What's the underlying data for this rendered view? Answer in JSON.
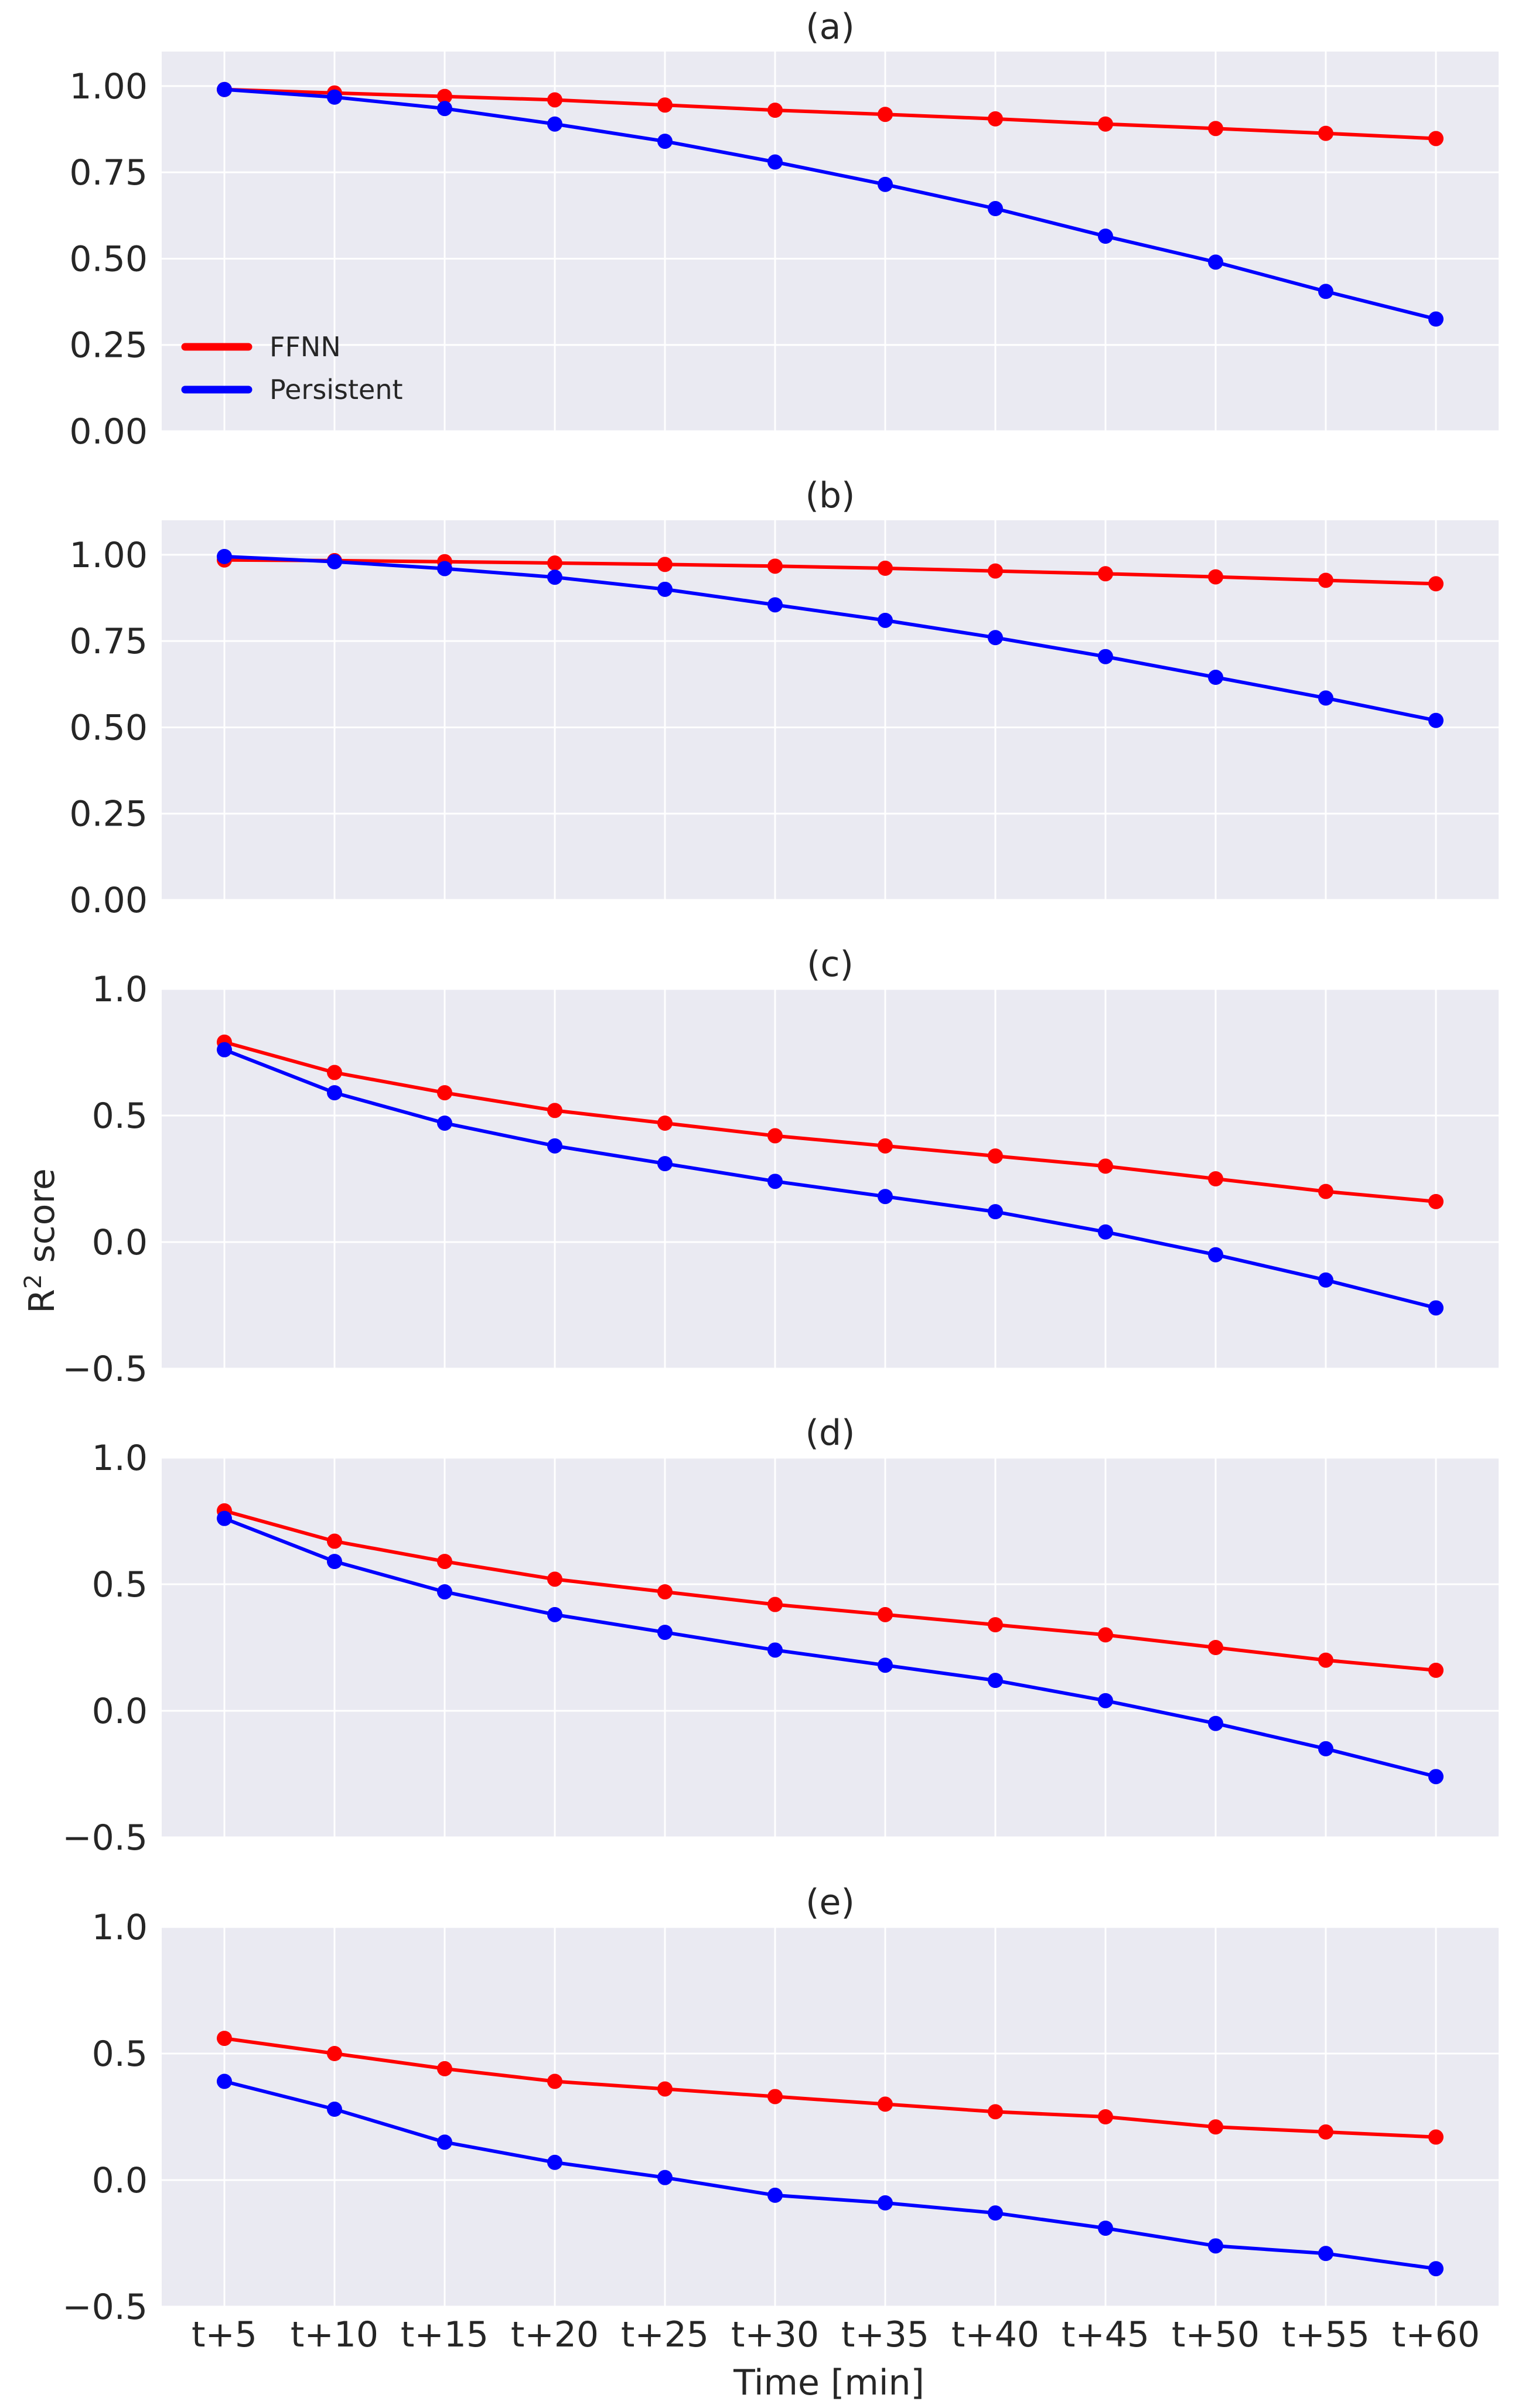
{
  "chart_data": {
    "type": "line",
    "layout": "5 stacked panels sharing x-axis",
    "categories": [
      "t+5",
      "t+10",
      "t+15",
      "t+20",
      "t+25",
      "t+30",
      "t+35",
      "t+40",
      "t+45",
      "t+50",
      "t+55",
      "t+60"
    ],
    "xlabel": "Time [min]",
    "ylabel_main": "R",
    "ylabel_sup": "2",
    "ylabel_rest": " score",
    "legend": {
      "placement": "lower-left of panel (a)",
      "entries": [
        {
          "name": "FFNN",
          "color": "#ff0000"
        },
        {
          "name": "Persistent",
          "color": "#0000ff"
        }
      ]
    },
    "style": {
      "background": "#eaeaf2",
      "grid": "#ffffff",
      "text": "#262626"
    },
    "panels": [
      {
        "title": "(a)",
        "ylim": [
          0,
          1.1
        ],
        "yticks": [
          0,
          0.25,
          0.5,
          0.75,
          1.0
        ],
        "ytick_labels": [
          "0.00",
          "0.25",
          "0.50",
          "0.75",
          "1.00"
        ],
        "series": [
          {
            "name": "FFNN",
            "color": "#ff0000",
            "values": [
              0.99,
              0.98,
              0.97,
              0.96,
              0.945,
              0.93,
              0.918,
              0.905,
              0.89,
              0.877,
              0.863,
              0.848
            ]
          },
          {
            "name": "Persistent",
            "color": "#0000ff",
            "values": [
              0.99,
              0.968,
              0.935,
              0.89,
              0.84,
              0.78,
              0.715,
              0.645,
              0.565,
              0.49,
              0.405,
              0.325
            ]
          }
        ]
      },
      {
        "title": "(b)",
        "ylim": [
          0,
          1.1
        ],
        "yticks": [
          0,
          0.25,
          0.5,
          0.75,
          1.0
        ],
        "ytick_labels": [
          "0.00",
          "0.25",
          "0.50",
          "0.75",
          "1.00"
        ],
        "series": [
          {
            "name": "FFNN",
            "color": "#ff0000",
            "values": [
              0.985,
              0.983,
              0.98,
              0.976,
              0.972,
              0.967,
              0.961,
              0.953,
              0.945,
              0.936,
              0.926,
              0.916
            ]
          },
          {
            "name": "Persistent",
            "color": "#0000ff",
            "values": [
              0.995,
              0.98,
              0.96,
              0.935,
              0.9,
              0.855,
              0.81,
              0.76,
              0.705,
              0.645,
              0.585,
              0.52
            ]
          }
        ]
      },
      {
        "title": "(c)",
        "ylim": [
          -0.5,
          1.0
        ],
        "yticks": [
          -0.5,
          0,
          0.5,
          1.0
        ],
        "ytick_labels": [
          "−0.5",
          "0.0",
          "0.5",
          "1.0"
        ],
        "series": [
          {
            "name": "FFNN",
            "color": "#ff0000",
            "values": [
              0.79,
              0.67,
              0.59,
              0.52,
              0.47,
              0.42,
              0.38,
              0.34,
              0.3,
              0.25,
              0.2,
              0.16
            ]
          },
          {
            "name": "Persistent",
            "color": "#0000ff",
            "values": [
              0.76,
              0.59,
              0.47,
              0.38,
              0.31,
              0.24,
              0.18,
              0.12,
              0.04,
              -0.05,
              -0.15,
              -0.26
            ]
          }
        ]
      },
      {
        "title": "(d)",
        "ylim": [
          -0.5,
          1.0
        ],
        "yticks": [
          -0.5,
          0,
          0.5,
          1.0
        ],
        "ytick_labels": [
          "−0.5",
          "0.0",
          "0.5",
          "1.0"
        ],
        "series": [
          {
            "name": "FFNN",
            "color": "#ff0000",
            "values": [
              0.79,
              0.67,
              0.59,
              0.52,
              0.47,
              0.42,
              0.38,
              0.34,
              0.3,
              0.25,
              0.2,
              0.16
            ]
          },
          {
            "name": "Persistent",
            "color": "#0000ff",
            "values": [
              0.76,
              0.59,
              0.47,
              0.38,
              0.31,
              0.24,
              0.18,
              0.12,
              0.04,
              -0.05,
              -0.15,
              -0.26
            ]
          }
        ]
      },
      {
        "title": "(e)",
        "ylim": [
          -0.5,
          1.0
        ],
        "yticks": [
          -0.5,
          0,
          0.5,
          1.0
        ],
        "ytick_labels": [
          "−0.5",
          "0.0",
          "0.5",
          "1.0"
        ],
        "series": [
          {
            "name": "FFNN",
            "color": "#ff0000",
            "values": [
              0.56,
              0.5,
              0.44,
              0.39,
              0.36,
              0.33,
              0.3,
              0.27,
              0.25,
              0.21,
              0.19,
              0.17
            ]
          },
          {
            "name": "Persistent",
            "color": "#0000ff",
            "values": [
              0.39,
              0.28,
              0.15,
              0.07,
              0.01,
              -0.06,
              -0.09,
              -0.13,
              -0.19,
              -0.26,
              -0.29,
              -0.35
            ]
          }
        ]
      }
    ]
  }
}
